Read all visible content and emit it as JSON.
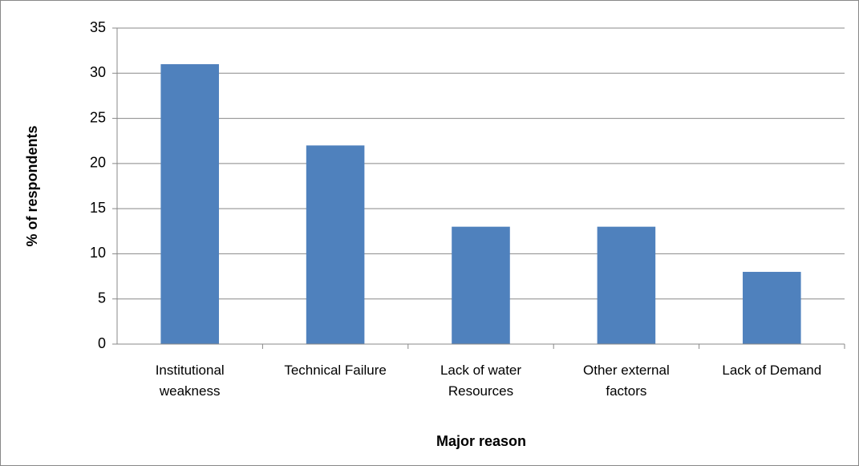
{
  "chart_data": {
    "type": "bar",
    "x_label": "Major reason",
    "y_label": "% of respondents",
    "categories": [
      "Institutional weakness",
      "Technical Failure",
      "Lack of water Resources",
      "Other external factors",
      "Lack of Demand"
    ],
    "values": [
      31,
      22,
      13,
      13,
      8
    ],
    "color": "#4f81bd",
    "ylim": [
      0,
      35
    ],
    "yticks": [
      0,
      5,
      10,
      15,
      20,
      25,
      30,
      35
    ],
    "grid": true
  }
}
